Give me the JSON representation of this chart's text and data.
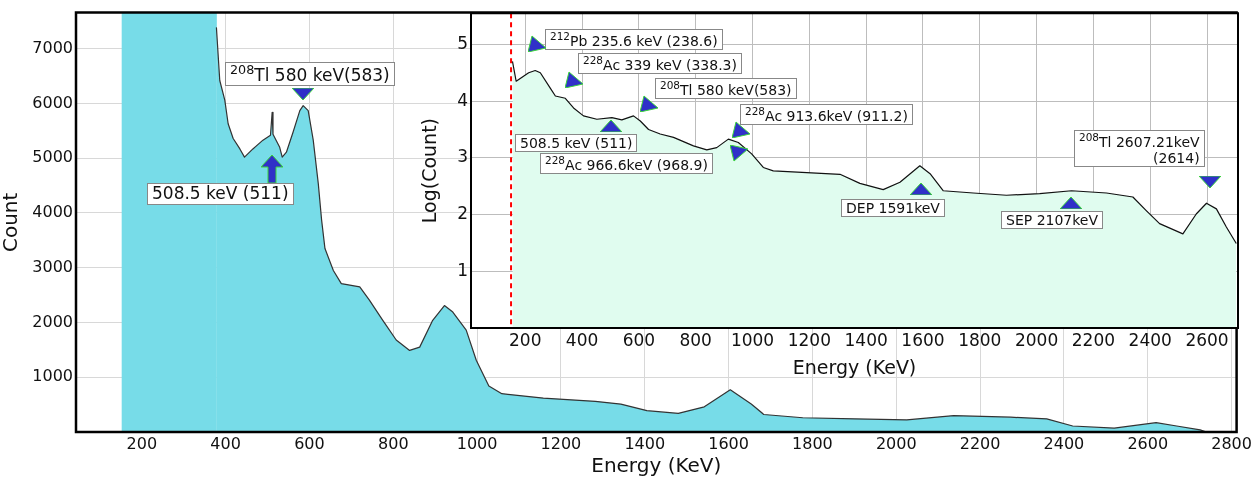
{
  "chart_data": [
    {
      "type": "area",
      "xlabel": "Energy (KeV)",
      "ylabel": "Count",
      "xlim": [
        43,
        2812
      ],
      "ylim": [
        0,
        7660
      ],
      "xticks": [
        200,
        400,
        600,
        800,
        1000,
        1200,
        1400,
        1600,
        1800,
        2000,
        2200,
        2400,
        2600,
        2800
      ],
      "yticks": [
        1000,
        2000,
        3000,
        4000,
        5000,
        6000,
        7000
      ],
      "grid": true,
      "x": [
        378,
        386,
        398,
        406,
        418,
        434,
        445,
        465,
        489,
        507,
        511,
        513,
        529,
        535,
        545,
        561,
        577,
        585,
        597,
        609,
        621,
        629,
        637,
        657,
        676,
        720,
        743,
        775,
        807,
        839,
        863,
        894,
        922,
        942,
        974,
        998,
        1028,
        1059,
        1158,
        1282,
        1343,
        1405,
        1480,
        1542,
        1604,
        1654,
        1684,
        1777,
        1901,
        2025,
        2137,
        2273,
        2359,
        2421,
        2520,
        2620,
        2669,
        2725,
        2740
      ],
      "series": [
        {
          "color": "#77dce8",
          "values": [
            7390,
            6420,
            6060,
            5630,
            5360,
            5170,
            5020,
            5170,
            5330,
            5420,
            5840,
            5440,
            5200,
            5020,
            5110,
            5480,
            5870,
            5960,
            5870,
            5330,
            4540,
            3870,
            3350,
            2950,
            2710,
            2650,
            2410,
            2040,
            1680,
            1490,
            1550,
            2040,
            2310,
            2190,
            1860,
            1310,
            840,
            700,
            620,
            560,
            510,
            390,
            340,
            460,
            770,
            510,
            320,
            260,
            240,
            220,
            300,
            270,
            240,
            110,
            70,
            170,
            110,
            40,
            0
          ]
        }
      ],
      "bands": [
        {
          "axis": "x",
          "from": 152,
          "to": 379,
          "color": "#77dce8"
        }
      ],
      "annotations": [
        "$^{208}$Tl 580 keV(583)",
        "508.5 keV (511)"
      ]
    },
    {
      "type": "area",
      "xlabel": "Energy (KeV)",
      "ylabel": "Log(Count)",
      "xlim": [
        9,
        2709
      ],
      "ylim": [
        0,
        5.55
      ],
      "xticks": [
        200,
        400,
        600,
        800,
        1000,
        1200,
        1400,
        1600,
        1800,
        2000,
        2200,
        2400,
        2600
      ],
      "yticks": [
        1,
        2,
        3,
        4,
        5
      ],
      "grid": true,
      "x": [
        155,
        168,
        212,
        235,
        253,
        288,
        306,
        341,
        370,
        405,
        452,
        505,
        540,
        581,
        605,
        634,
        675,
        722,
        792,
        839,
        874,
        915,
        950,
        997,
        1038,
        1073,
        1191,
        1308,
        1378,
        1460,
        1519,
        1589,
        1625,
        1671,
        1777,
        1894,
        2011,
        2123,
        2246,
        2339,
        2386,
        2433,
        2515,
        2562,
        2598,
        2633,
        2668,
        2703
      ],
      "series": [
        {
          "color": "#e0fcef",
          "values": [
            4.7,
            4.35,
            4.5,
            4.54,
            4.5,
            4.23,
            4.09,
            4.05,
            3.88,
            3.74,
            3.68,
            3.71,
            3.67,
            3.74,
            3.65,
            3.5,
            3.42,
            3.36,
            3.21,
            3.14,
            3.18,
            3.33,
            3.27,
            3.07,
            2.83,
            2.77,
            2.74,
            2.71,
            2.55,
            2.44,
            2.57,
            2.86,
            2.72,
            2.42,
            2.38,
            2.34,
            2.37,
            2.42,
            2.38,
            2.31,
            2.07,
            1.84,
            1.66,
            2.01,
            2.2,
            2.1,
            1.78,
            1.49
          ]
        }
      ],
      "ref_lines": [
        {
          "axis": "x",
          "value": 150,
          "color": "#ff0000",
          "line_style": "dashed"
        }
      ],
      "annotations": [
        "$^{212}$Pb 235.6 keV (238.6)",
        "$^{228}$Ac 339 keV (338.3)",
        "$^{208}$Tl 580 keV(583)",
        "508.5 keV (511)",
        "$^{228}$Ac 913.6keV (911.2)",
        "$^{228}$Ac 966.6keV (968.9)",
        "DEP 1591keV",
        "SEP 2107keV",
        "$^{208}$Tl 2607.21keV\n(2614)"
      ]
    }
  ]
}
